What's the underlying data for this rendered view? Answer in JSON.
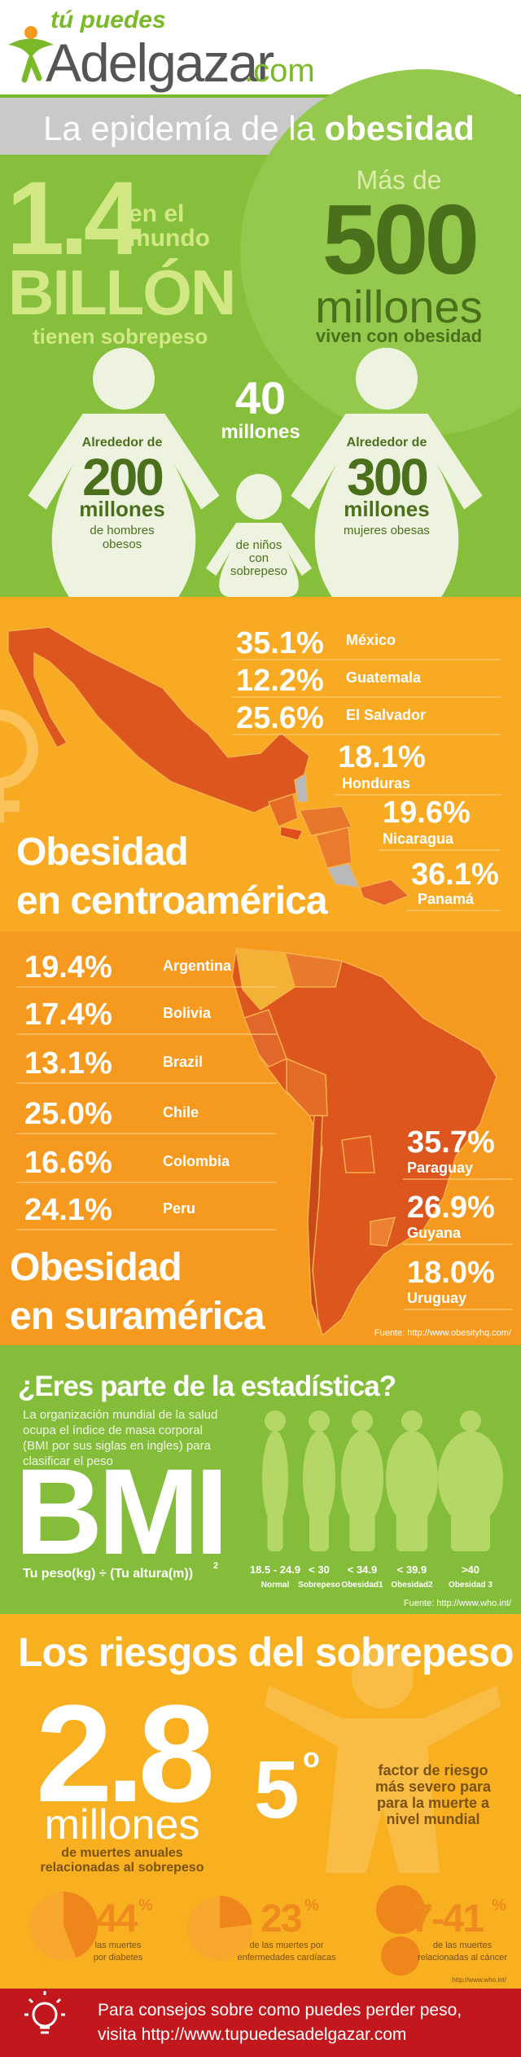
{
  "header": {
    "tagline": "tú puedes",
    "brand": "Adelgazar",
    "domain": ".com"
  },
  "banner": {
    "light": "La epidemía de la ",
    "bold": "obesidad"
  },
  "world": {
    "overweight": {
      "number": "1.4",
      "context": [
        "en el",
        "mundo"
      ],
      "unit": "BILLÓN",
      "caption": "tienen sobrepeso"
    },
    "obese": {
      "prefix": "Más de",
      "number": "500",
      "unit": "millones",
      "caption": "viven con obesidad"
    },
    "men": {
      "prefix": "Alrededor de",
      "number": "200",
      "unit": "millones",
      "caption": [
        "de hombres",
        "obesos"
      ]
    },
    "children": {
      "number": "40",
      "unit": "millones",
      "caption": [
        "de niños",
        "con",
        "sobrepeso"
      ]
    },
    "women": {
      "prefix": "Alrededor de",
      "number": "300",
      "unit": "millones",
      "caption": [
        "mujeres obesas"
      ]
    }
  },
  "central_america": {
    "title": [
      "Obesidad",
      "en centroamérica"
    ],
    "rows": [
      {
        "percent": "35.1%",
        "country": "México"
      },
      {
        "percent": "12.2%",
        "country": "Guatemala"
      },
      {
        "percent": "25.6%",
        "country": "El Salvador"
      },
      {
        "percent": "18.1%",
        "country": "Honduras"
      },
      {
        "percent": "19.6%",
        "country": "Nicaragua"
      },
      {
        "percent": "36.1%",
        "country": "Panamá"
      }
    ]
  },
  "south_america": {
    "title": [
      "Obesidad",
      "en suramérica"
    ],
    "rows": [
      {
        "percent": "19.4%",
        "country": "Argentina"
      },
      {
        "percent": "17.4%",
        "country": "Bolivia"
      },
      {
        "percent": "13.1%",
        "country": "Brazil"
      },
      {
        "percent": "25.0%",
        "country": "Chile"
      },
      {
        "percent": "16.6%",
        "country": "Colombia"
      },
      {
        "percent": "24.1%",
        "country": "Peru"
      },
      {
        "percent": "35.7%",
        "country": "Paraguay"
      },
      {
        "percent": "26.9%",
        "country": "Guyana"
      },
      {
        "percent": "18.0%",
        "country": "Uruguay"
      }
    ],
    "source": "Fuente: http://www.obesityhq.com/"
  },
  "bmi": {
    "question": "¿Eres parte de la estadística?",
    "description": [
      "La organización mundial de la salud",
      "ocupa el índice de masa corporal",
      "(BMI por sus siglas en ingles) para",
      "clasificar el peso"
    ],
    "acronym": "BMI",
    "formula": "Tu peso(kg) ÷ (Tu altura(m))",
    "exponent": "2",
    "categories": [
      {
        "range": "18.5 - 24.9",
        "label": "Normal"
      },
      {
        "range": "< 30",
        "label": "Sobrepeso"
      },
      {
        "range": "< 34.9",
        "label": "Obesidad1"
      },
      {
        "range": "< 39.9",
        "label": "Obesidad2"
      },
      {
        "range": ">40",
        "label": "Obesidad 3"
      }
    ],
    "source": "Fuente: http://www.who.int/"
  },
  "risks": {
    "title": "Los riesgos del sobrepeso",
    "deaths": {
      "number": "2.8",
      "unit": "millones",
      "caption": [
        "de muertes anuales",
        "relacionadas al sobrepeso"
      ]
    },
    "rank": {
      "number": "5",
      "degree": "o",
      "caption": [
        "factor de riesgo",
        "más severo para",
        "para la muerte a",
        "nivel mundial"
      ]
    },
    "shares": [
      {
        "value": 44,
        "unit": "%",
        "caption": [
          "las muertes",
          "por diabetes"
        ]
      },
      {
        "value": 23,
        "unit": "%",
        "caption": [
          "de las muertes por",
          "enfermedades cardíacas"
        ]
      },
      {
        "value": "7-41",
        "unit": "%",
        "caption": [
          "de las muertes",
          "relacionadas al cáncer"
        ]
      }
    ],
    "source": "http://www.who.int/"
  },
  "footer": {
    "lines": [
      "Para consejos sobre como puedes perder peso,",
      "visita http://www.tupuedesadelgazar.com"
    ]
  }
}
